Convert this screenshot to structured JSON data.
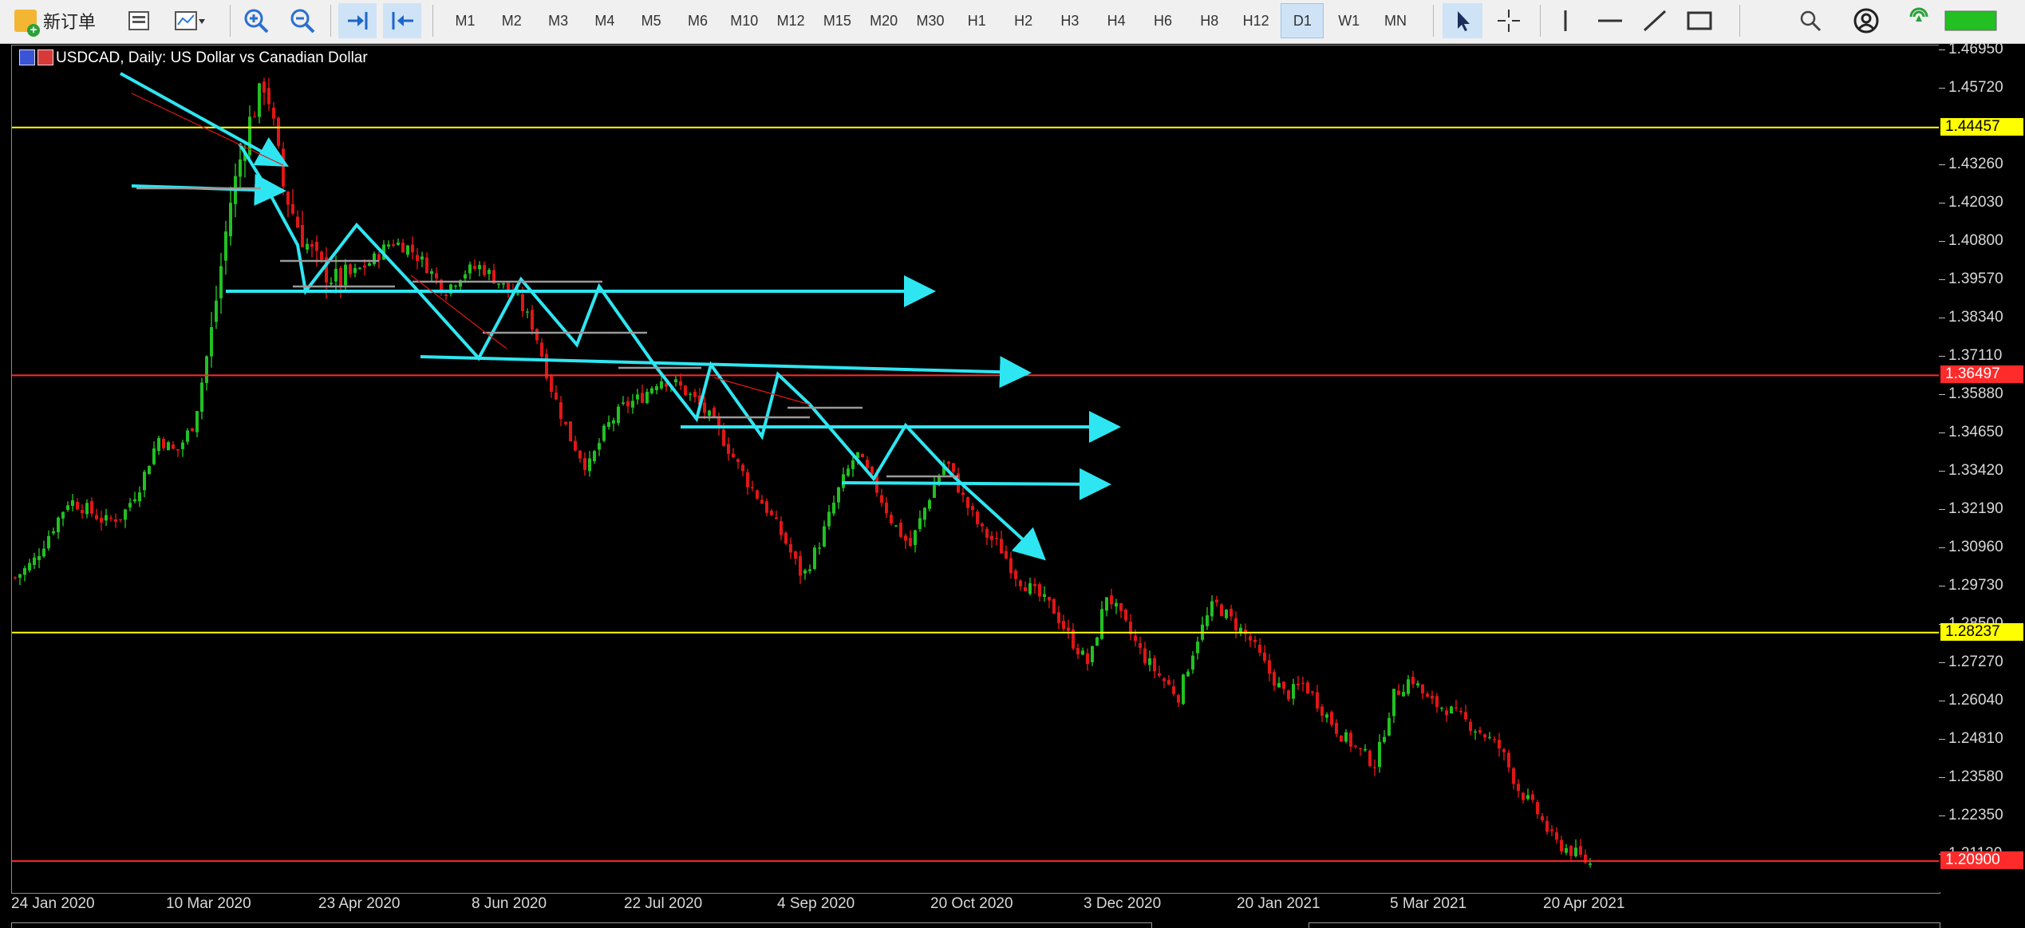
{
  "toolbar": {
    "new_order_label": "新订单",
    "timeframes": [
      "M1",
      "M2",
      "M3",
      "M4",
      "M5",
      "M6",
      "M10",
      "M12",
      "M15",
      "M20",
      "M30",
      "H1",
      "H2",
      "H3",
      "H4",
      "H6",
      "H8",
      "H12",
      "D1",
      "W1",
      "MN"
    ],
    "selected_timeframe": "D1"
  },
  "chart": {
    "title": "USDCAD, Daily:  US Dollar vs Canadian Dollar",
    "price_labels": [
      "1.46950",
      "1.45720",
      "1.43260",
      "1.42030",
      "1.40800",
      "1.39570",
      "1.38340",
      "1.37110",
      "1.35880",
      "1.34650",
      "1.33420",
      "1.32190",
      "1.30960",
      "1.29730",
      "1.28500",
      "1.27270",
      "1.26040",
      "1.24810",
      "1.23580",
      "1.22350",
      "1.21120"
    ],
    "date_labels": [
      "24 Jan 2020",
      "10 Mar 2020",
      "23 Apr 2020",
      "8 Jun 2020",
      "22 Jul 2020",
      "4 Sep 2020",
      "20 Oct 2020",
      "3 Dec 2020",
      "20 Jan 2021",
      "5 Mar 2021",
      "20 Apr 2021"
    ],
    "horizontal_lines": [
      {
        "price": 1.44457,
        "label": "1.44457",
        "color": "#ffff00"
      },
      {
        "price": 1.36497,
        "label": "1.36497",
        "color": "#ff2a2a"
      },
      {
        "price": 1.28237,
        "label": "1.28237",
        "color": "#ffff00"
      },
      {
        "price": 1.209,
        "label": "1.20900",
        "color": "#ff2a2a"
      }
    ],
    "colors": {
      "bull": "#22c022",
      "bear": "#e01616",
      "drawing": "#2ee6f2",
      "background": "#000000",
      "axis_text": "#d8d8d8"
    },
    "pivot_closes": [
      1.3,
      1.305,
      1.315,
      1.325,
      1.322,
      1.318,
      1.32,
      1.33,
      1.345,
      1.34,
      1.35,
      1.38,
      1.42,
      1.445,
      1.46,
      1.425,
      1.41,
      1.4,
      1.395,
      1.398,
      1.402,
      1.408,
      1.406,
      1.4,
      1.392,
      1.398,
      1.4,
      1.395,
      1.39,
      1.38,
      1.36,
      1.345,
      1.335,
      1.348,
      1.355,
      1.358,
      1.364,
      1.362,
      1.357,
      1.35,
      1.34,
      1.33,
      1.322,
      1.312,
      1.3,
      1.312,
      1.328,
      1.34,
      1.33,
      1.318,
      1.31,
      1.325,
      1.338,
      1.325,
      1.315,
      1.31,
      1.3,
      1.295,
      1.29,
      1.28,
      1.272,
      1.295,
      1.285,
      1.275,
      1.268,
      1.262,
      1.28,
      1.292,
      1.286,
      1.28,
      1.27,
      1.262,
      1.266,
      1.258,
      1.25,
      1.245,
      1.24,
      1.262,
      1.268,
      1.26,
      1.258,
      1.254,
      1.25,
      1.245,
      1.232,
      1.225,
      1.215,
      1.212,
      1.208
    ]
  }
}
